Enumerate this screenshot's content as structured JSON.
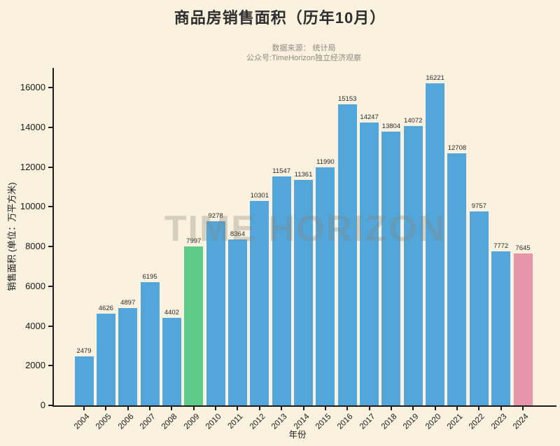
{
  "figure": {
    "title": "商品房销售面积（历年10月）",
    "subtitle_line1": "数据来源： 统计局",
    "subtitle_line2": "公众号:TimeHorizon独立经济观察",
    "watermark": "TIME HORIZON",
    "background_color": "#faf1de"
  },
  "chart_data": {
    "type": "bar",
    "title": "商品房销售面积（历年10月）",
    "xlabel": "年份",
    "ylabel": "销售面积 (单位：万平方米)",
    "categories": [
      "2004",
      "2005",
      "2006",
      "2007",
      "2008",
      "2009",
      "2010",
      "2011",
      "2012",
      "2013",
      "2014",
      "2015",
      "2016",
      "2017",
      "2018",
      "2019",
      "2020",
      "2021",
      "2022",
      "2023",
      "2024"
    ],
    "values": [
      2479,
      4626,
      4897,
      6195,
      4402,
      7997,
      9278,
      8364,
      10301,
      11547,
      11361,
      11990,
      15153,
      14247,
      13804,
      14072,
      16221,
      12708,
      9757,
      7772,
      7645
    ],
    "ylim": [
      0,
      17000
    ],
    "yticks": [
      0,
      2000,
      4000,
      6000,
      8000,
      10000,
      12000,
      14000,
      16000
    ],
    "grid": false,
    "legend": null,
    "value_labels_shown": true,
    "bar_color_default": "#53a6da",
    "bar_color_highlights": {
      "2009": "#5fcb8b",
      "2024": "#e796aa"
    },
    "axis_color": "#1c1c1c"
  }
}
